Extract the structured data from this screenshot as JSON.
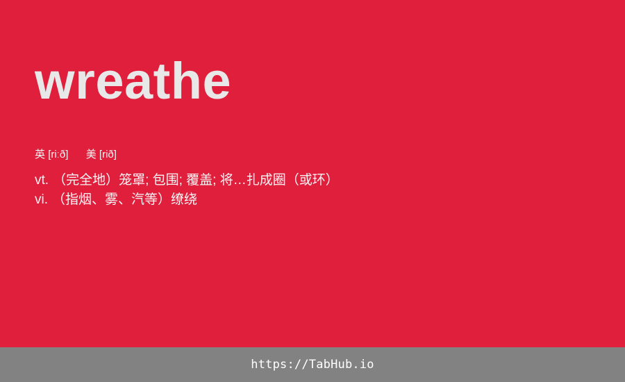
{
  "card": {
    "word": "wreathe",
    "phonetics": {
      "uk_label": "英",
      "uk_ipa": "[riːð]",
      "us_label": "美",
      "us_ipa": "[rið]"
    },
    "definitions": [
      {
        "pos": "vt.",
        "text": "（完全地）笼罩; 包围; 覆盖; 将…扎成圈（或环）"
      },
      {
        "pos": "vi.",
        "text": "（指烟、雾、汽等）缭绕"
      }
    ]
  },
  "footer": {
    "link_text": "https://TabHub.io"
  },
  "colors": {
    "background": "#e01f3d",
    "footer": "#828282",
    "word": "#e8e8e8"
  }
}
